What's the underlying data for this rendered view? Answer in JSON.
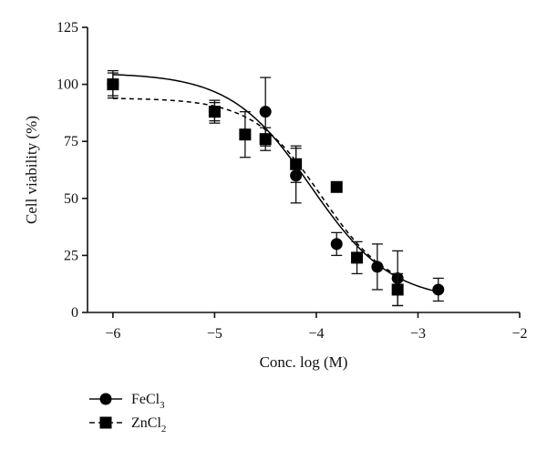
{
  "chart_data": {
    "type": "scatter",
    "xlabel": "Conc. log (M)",
    "ylabel": "Cell viability (%)",
    "xlim": [
      -6.25,
      -2
    ],
    "ylim": [
      0,
      125
    ],
    "xticks": [
      -6,
      -5,
      -4,
      -3,
      -2
    ],
    "yticks": [
      0,
      25,
      50,
      75,
      100,
      125
    ],
    "xtick_labels": [
      "−6",
      "−5",
      "−4",
      "−3",
      "−2"
    ],
    "ytick_labels": [
      "0",
      "25",
      "50",
      "75",
      "100",
      "125"
    ],
    "grid": false,
    "legend_position": "bottom-left",
    "series": [
      {
        "name": "FeCl3",
        "legend_label": {
          "base": "FeCl",
          "sub": "3"
        },
        "marker": "circle",
        "line_style": "solid",
        "color": "#000000",
        "points": [
          {
            "x": -6.0,
            "y": 100,
            "err": 6
          },
          {
            "x": -5.0,
            "y": 88,
            "err": 4
          },
          {
            "x": -4.5,
            "y": 88,
            "err": 15
          },
          {
            "x": -4.2,
            "y": 60,
            "err": 12
          },
          {
            "x": -3.8,
            "y": 30,
            "err": 5
          },
          {
            "x": -3.4,
            "y": 20,
            "err": 10
          },
          {
            "x": -3.2,
            "y": 15,
            "err": 12
          },
          {
            "x": -2.8,
            "y": 10,
            "err": 5
          }
        ],
        "fit": {
          "top": 105,
          "bottom": 5,
          "log_ic50": -4.05,
          "hill_slope": -1.1
        }
      },
      {
        "name": "ZnCl2",
        "legend_label": {
          "base": "ZnCl",
          "sub": "2"
        },
        "marker": "square",
        "line_style": "dashed",
        "color": "#000000",
        "points": [
          {
            "x": -6.0,
            "y": 100,
            "err": 5
          },
          {
            "x": -5.0,
            "y": 88,
            "err": 5
          },
          {
            "x": -4.7,
            "y": 78,
            "err": 10
          },
          {
            "x": -4.5,
            "y": 76,
            "err": 5
          },
          {
            "x": -4.2,
            "y": 65,
            "err": 8
          },
          {
            "x": -3.8,
            "y": 55,
            "err": 2
          },
          {
            "x": -3.6,
            "y": 24,
            "err": 7
          },
          {
            "x": -3.2,
            "y": 10,
            "err": 7
          }
        ],
        "fit": {
          "top": 94,
          "bottom": 8,
          "log_ic50": -3.95,
          "hill_slope": -1.3
        }
      }
    ]
  }
}
